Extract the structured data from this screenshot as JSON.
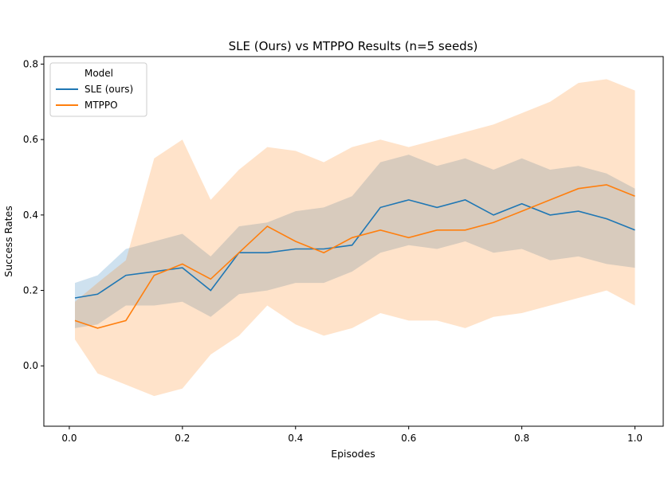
{
  "chart_data": {
    "type": "line",
    "title": "SLE (Ours) vs MTPPO Results (n=5 seeds)",
    "xlabel": "Episodes",
    "ylabel": "Success Rates",
    "xlim": [
      -0.045,
      1.05
    ],
    "ylim": [
      -0.16,
      0.82
    ],
    "xticks": [
      "0.0",
      "0.2",
      "0.4",
      "0.6",
      "0.8",
      "1.0"
    ],
    "yticks": [
      "0.0",
      "0.2",
      "0.4",
      "0.6",
      "0.8"
    ],
    "grid": false,
    "legend": {
      "title": "Model",
      "placement": "top-left"
    },
    "series": [
      {
        "name": "SLE (ours)",
        "color": "#1f77b4",
        "x": [
          0.01,
          0.05,
          0.1,
          0.15,
          0.2,
          0.25,
          0.3,
          0.35,
          0.4,
          0.45,
          0.5,
          0.55,
          0.6,
          0.65,
          0.7,
          0.75,
          0.8,
          0.85,
          0.9,
          0.95,
          1.0
        ],
        "y": [
          0.18,
          0.19,
          0.24,
          0.25,
          0.26,
          0.2,
          0.3,
          0.3,
          0.31,
          0.31,
          0.32,
          0.42,
          0.44,
          0.42,
          0.44,
          0.4,
          0.43,
          0.4,
          0.41,
          0.39,
          0.36
        ],
        "lower": [
          0.1,
          0.11,
          0.16,
          0.16,
          0.17,
          0.13,
          0.19,
          0.2,
          0.22,
          0.22,
          0.25,
          0.3,
          0.32,
          0.31,
          0.33,
          0.3,
          0.31,
          0.28,
          0.29,
          0.27,
          0.26
        ],
        "upper": [
          0.22,
          0.24,
          0.31,
          0.33,
          0.35,
          0.29,
          0.37,
          0.38,
          0.41,
          0.42,
          0.45,
          0.54,
          0.56,
          0.53,
          0.55,
          0.52,
          0.55,
          0.52,
          0.53,
          0.51,
          0.47
        ]
      },
      {
        "name": "MTPPO",
        "color": "#ff7f0e",
        "x": [
          0.01,
          0.05,
          0.1,
          0.15,
          0.2,
          0.25,
          0.3,
          0.35,
          0.4,
          0.45,
          0.5,
          0.55,
          0.6,
          0.65,
          0.7,
          0.75,
          0.8,
          0.85,
          0.9,
          0.95,
          1.0
        ],
        "y": [
          0.12,
          0.1,
          0.12,
          0.24,
          0.27,
          0.23,
          0.3,
          0.37,
          0.33,
          0.3,
          0.34,
          0.36,
          0.34,
          0.36,
          0.36,
          0.38,
          0.41,
          0.44,
          0.47,
          0.48,
          0.45
        ],
        "lower": [
          0.07,
          -0.02,
          -0.05,
          -0.08,
          -0.06,
          0.03,
          0.08,
          0.16,
          0.11,
          0.08,
          0.1,
          0.14,
          0.12,
          0.12,
          0.1,
          0.13,
          0.14,
          0.16,
          0.18,
          0.2,
          0.16
        ],
        "upper": [
          0.17,
          0.22,
          0.28,
          0.55,
          0.6,
          0.44,
          0.52,
          0.58,
          0.57,
          0.54,
          0.58,
          0.6,
          0.58,
          0.6,
          0.62,
          0.64,
          0.67,
          0.7,
          0.75,
          0.76,
          0.73
        ]
      }
    ]
  }
}
